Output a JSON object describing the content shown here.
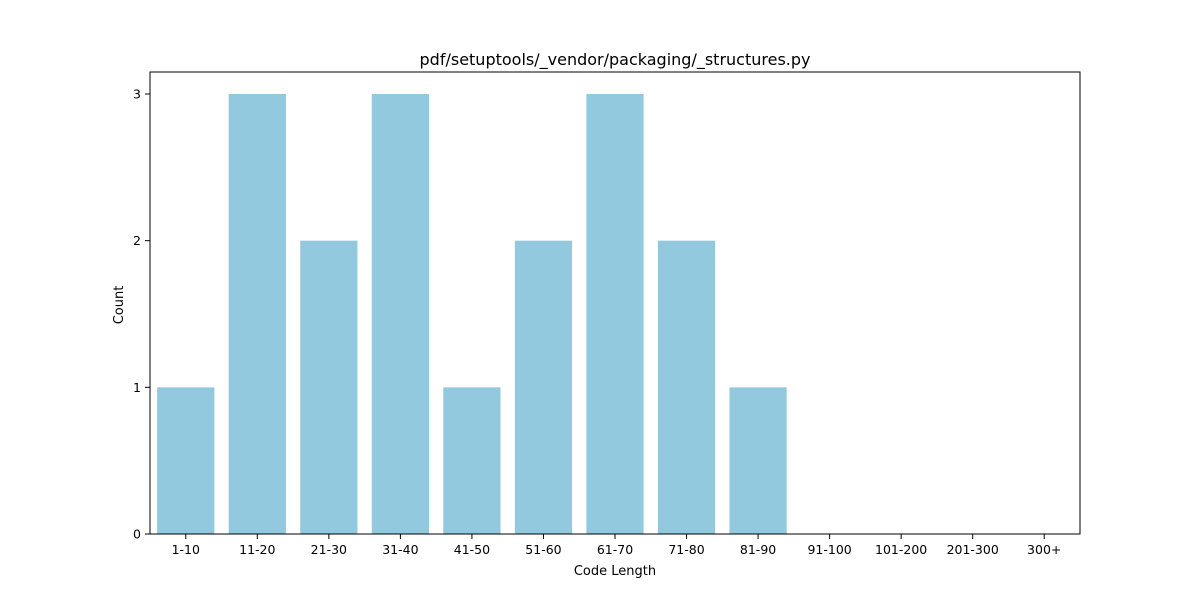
{
  "chart_data": {
    "type": "bar",
    "title": "pdf/setuptools/_vendor/packaging/_structures.py",
    "xlabel": "Code Length",
    "ylabel": "Count",
    "categories": [
      "1-10",
      "11-20",
      "21-30",
      "31-40",
      "41-50",
      "51-60",
      "61-70",
      "71-80",
      "81-90",
      "91-100",
      "101-200",
      "201-300",
      "300+"
    ],
    "values": [
      1,
      3,
      2,
      3,
      1,
      2,
      3,
      2,
      1,
      0,
      0,
      0,
      0
    ],
    "yticks": [
      0,
      1,
      2,
      3
    ],
    "ylim": [
      0,
      3.15
    ],
    "grid": false,
    "bar_color": "#92c9df"
  }
}
